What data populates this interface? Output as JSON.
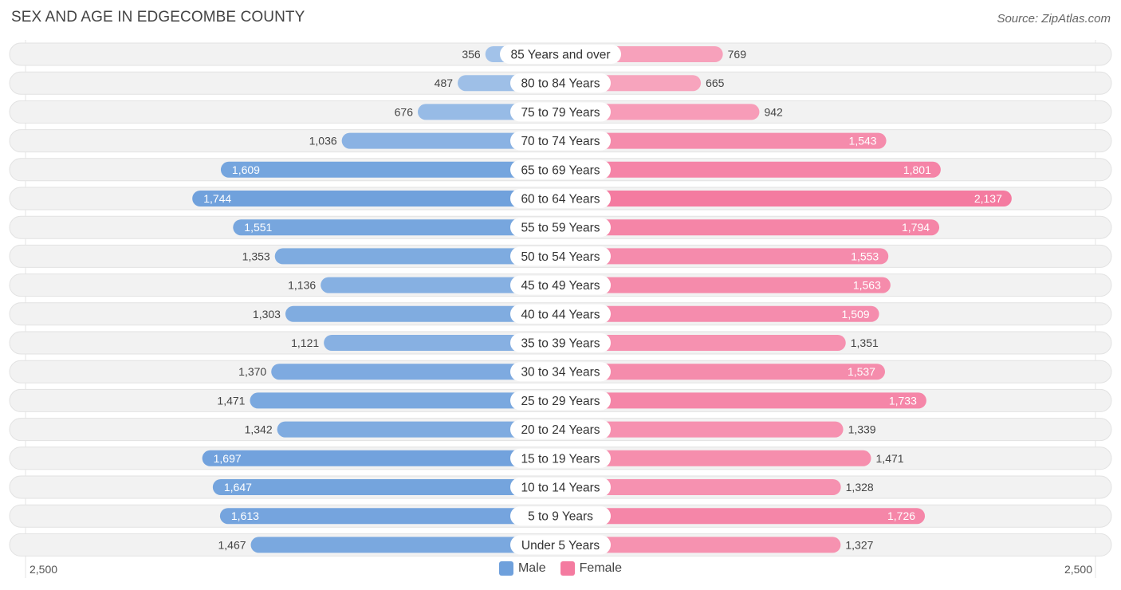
{
  "title": "SEX AND AGE IN EDGECOMBE COUNTY",
  "source": "Source: ZipAtlas.com",
  "colors": {
    "male": "#6ea0dc",
    "female": "#f47ba0",
    "row_bg": "#f0f0f0"
  },
  "legend": {
    "male_label": "Male",
    "female_label": "Female"
  },
  "axis": {
    "left_label": "2,500",
    "right_label": "2,500"
  },
  "chart_data": {
    "type": "bar",
    "orientation": "horizontal-diverging",
    "title": "SEX AND AGE IN EDGECOMBE COUNTY",
    "xlim": [
      -2500,
      2500
    ],
    "categories": [
      "85 Years and over",
      "80 to 84 Years",
      "75 to 79 Years",
      "70 to 74 Years",
      "65 to 69 Years",
      "60 to 64 Years",
      "55 to 59 Years",
      "50 to 54 Years",
      "45 to 49 Years",
      "40 to 44 Years",
      "35 to 39 Years",
      "30 to 34 Years",
      "25 to 29 Years",
      "20 to 24 Years",
      "15 to 19 Years",
      "10 to 14 Years",
      "5 to 9 Years",
      "Under 5 Years"
    ],
    "series": [
      {
        "name": "Male",
        "values": [
          356,
          487,
          676,
          1036,
          1609,
          1744,
          1551,
          1353,
          1136,
          1303,
          1121,
          1370,
          1471,
          1342,
          1697,
          1647,
          1613,
          1467
        ],
        "labels": [
          "356",
          "487",
          "676",
          "1,036",
          "1,609",
          "1,744",
          "1,551",
          "1,353",
          "1,136",
          "1,303",
          "1,121",
          "1,370",
          "1,471",
          "1,342",
          "1,697",
          "1,647",
          "1,613",
          "1,467"
        ]
      },
      {
        "name": "Female",
        "values": [
          769,
          665,
          942,
          1543,
          1801,
          2137,
          1794,
          1553,
          1563,
          1509,
          1351,
          1537,
          1733,
          1339,
          1471,
          1328,
          1726,
          1327
        ],
        "labels": [
          "769",
          "665",
          "942",
          "1,543",
          "1,801",
          "2,137",
          "1,794",
          "1,553",
          "1,563",
          "1,509",
          "1,351",
          "1,537",
          "1,733",
          "1,339",
          "1,471",
          "1,328",
          "1,726",
          "1,327"
        ]
      }
    ]
  }
}
